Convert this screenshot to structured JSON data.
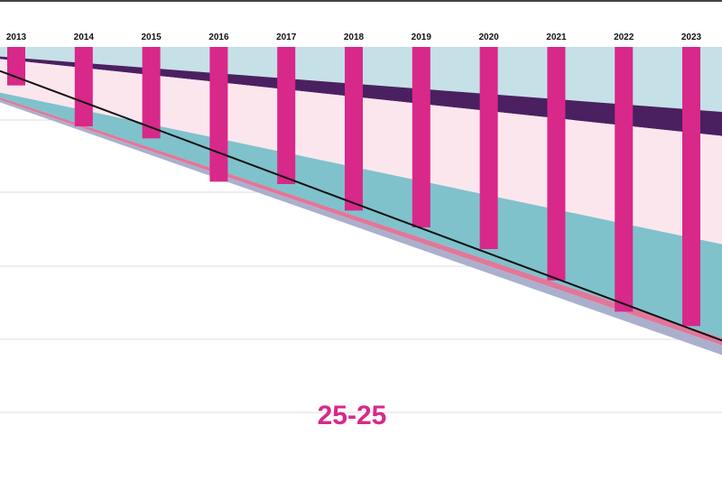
{
  "chart_data": {
    "type": "bar",
    "categories": [
      "2013",
      "2014",
      "2015",
      "2016",
      "2017",
      "2018",
      "2019",
      "2020",
      "2021",
      "2022",
      "2023"
    ],
    "values": [
      -16,
      -33,
      -38,
      -56,
      -57,
      -68,
      -75,
      -84,
      -97,
      -110,
      -116
    ],
    "trend_line": {
      "start": -10,
      "end": -122
    },
    "areas": [
      {
        "name": "light-blue",
        "upper": [
          0,
          0
        ],
        "lower": [
          -4,
          -27
        ]
      },
      {
        "name": "dark-purple",
        "upper": [
          -4,
          -27
        ],
        "lower": [
          -5,
          -37
        ]
      },
      {
        "name": "light-pink",
        "upper": [
          -5,
          -37
        ],
        "lower": [
          -19,
          -82
        ]
      },
      {
        "name": "teal",
        "upper": [
          -19,
          -82
        ],
        "lower": [
          -21,
          -121
        ]
      },
      {
        "name": "deep-pink",
        "upper": [
          -21,
          -121
        ],
        "lower": [
          -22,
          -124
        ]
      },
      {
        "name": "lavender",
        "upper": [
          -22,
          -124
        ],
        "lower": [
          -23,
          -128
        ]
      }
    ],
    "ylim": [
      -150,
      0
    ],
    "grid": true,
    "center_label": "25-25",
    "colors": {
      "bars": "#d8288a",
      "trend": "#111111",
      "light-blue": "#c5e1e7",
      "dark-purple": "#4b2060",
      "light-pink": "#fbe6ee",
      "teal": "#7fc2cb",
      "deep-pink": "#e0789a",
      "lavender": "#aab0cc",
      "grid": "#dddddd",
      "label": "#d8288a"
    }
  }
}
